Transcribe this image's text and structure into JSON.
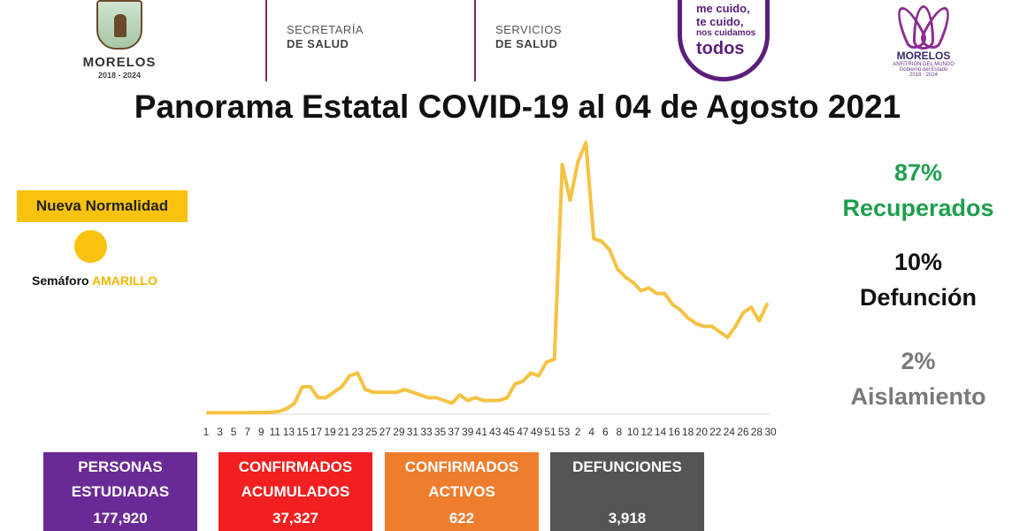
{
  "header": {
    "left_logo": {
      "name": "MORELOS",
      "years": "2018 - 2024"
    },
    "agency1": {
      "line1": "SECRETARÍA",
      "line2": "DE SALUD"
    },
    "agency2": {
      "line1": "SERVICIOS",
      "line2": "DE SALUD"
    },
    "campaign": {
      "line1": "me cuido,",
      "line2": "te cuido,",
      "line3": "nos cuidamos",
      "line4": "todos"
    },
    "right_logo": {
      "name": "MORELOS",
      "tagline": "ANFITRIÓN DEL MUNDO",
      "sub1": "Gobierno del Estado",
      "sub2": "2018 · 2024"
    }
  },
  "title": "Panorama Estatal COVID-19 al 04 de Agosto 2021",
  "semaforo": {
    "badge": "Nueva Normalidad",
    "label": "Semáforo",
    "status": "AMARILLO",
    "color": "#f9c20f"
  },
  "stats": {
    "recuperados": {
      "pct": "87%",
      "label": "Recuperados",
      "color": "#1e9f4e"
    },
    "defuncion": {
      "pct": "10%",
      "label": "Defunción",
      "color": "#111111"
    },
    "aislamiento": {
      "pct": "2%",
      "label": "Aislamiento",
      "color": "#7a7a7a"
    }
  },
  "boxes": [
    {
      "line1": "PERSONAS",
      "line2": "ESTUDIADAS",
      "value": "177,920",
      "color": "#6a2a95"
    },
    {
      "line1": "CONFIRMADOS",
      "line2": "ACUMULADOS",
      "value": "37,327",
      "color": "#f11f1f"
    },
    {
      "line1": "CONFIRMADOS",
      "line2": "ACTIVOS",
      "value": "622",
      "color": "#ef7d2e"
    },
    {
      "line1": "DEFUNCIONES",
      "line2": "",
      "value": "3,918",
      "color": "#555555"
    }
  ],
  "chart_data": {
    "type": "line",
    "title": "",
    "xlabel": "",
    "ylabel": "",
    "grid": false,
    "legend": "none",
    "line_color": "#f5c242",
    "ylim": [
      0,
      100
    ],
    "x_tick_labels": [
      "1",
      "3",
      "5",
      "7",
      "9",
      "11",
      "13",
      "15",
      "17",
      "19",
      "21",
      "23",
      "25",
      "27",
      "29",
      "31",
      "33",
      "35",
      "37",
      "39",
      "41",
      "43",
      "45",
      "47",
      "49",
      "51",
      "53",
      "2",
      "4",
      "6",
      "8",
      "10",
      "12",
      "14",
      "16",
      "18",
      "20",
      "22",
      "24",
      "26",
      "28",
      "30"
    ],
    "values": [
      0.5,
      0.5,
      0.5,
      0.5,
      0.5,
      0.5,
      0.6,
      0.6,
      0.7,
      1,
      2,
      4,
      10,
      10,
      6,
      6,
      8,
      10,
      14,
      15,
      9,
      8,
      8,
      8,
      8,
      9,
      8,
      7,
      6,
      6,
      5,
      4,
      7,
      5,
      6,
      5,
      5,
      5,
      6,
      11,
      12,
      15,
      14,
      19,
      20,
      91,
      78,
      92,
      99,
      64,
      63,
      60,
      53,
      50,
      48,
      45,
      46,
      44,
      44,
      40,
      38,
      35,
      33,
      32,
      32,
      30,
      28,
      32,
      37,
      39,
      34,
      40
    ]
  }
}
